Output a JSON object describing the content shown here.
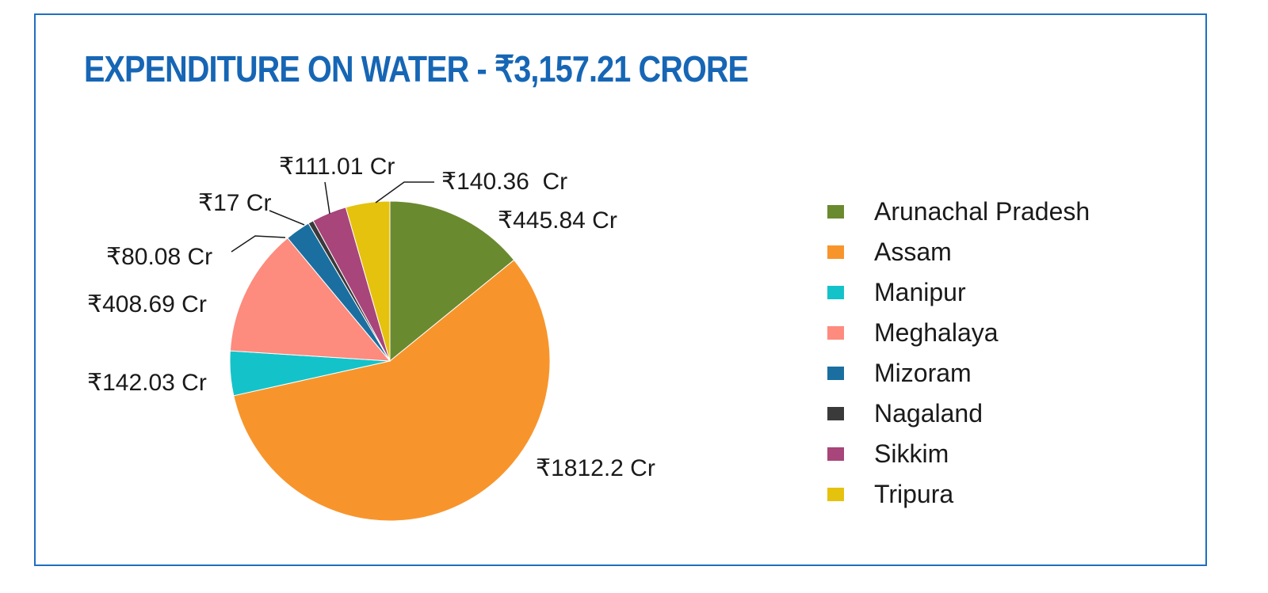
{
  "chart_data": {
    "type": "pie",
    "title": "EXPENDITURE ON WATER - ₹3,157.21 CRORE",
    "legend_position": "right",
    "slices": [
      {
        "name": "Arunachal Pradesh",
        "value": 445.84,
        "label": "₹445.84 Cr",
        "color": "#6a8a2f"
      },
      {
        "name": "Assam",
        "value": 1812.2,
        "label": "₹1812.2 Cr",
        "color": "#f7952c"
      },
      {
        "name": "Manipur",
        "value": 142.03,
        "label": "₹142.03 Cr",
        "color": "#14c3c9"
      },
      {
        "name": "Meghalaya",
        "value": 408.69,
        "label": "₹408.69 Cr",
        "color": "#fd8b7e"
      },
      {
        "name": "Mizoram",
        "value": 80.08,
        "label": "₹80.08 Cr",
        "color": "#1a6fa0"
      },
      {
        "name": "Nagaland",
        "value": 17,
        "label": "₹17 Cr",
        "color": "#3a3a3a"
      },
      {
        "name": "Sikkim",
        "value": 111.01,
        "label": "₹111.01 Cr",
        "color": "#a8457a"
      },
      {
        "name": "Tripura",
        "value": 140.36,
        "label": "₹140.36  Cr",
        "color": "#e5c20d"
      }
    ]
  }
}
